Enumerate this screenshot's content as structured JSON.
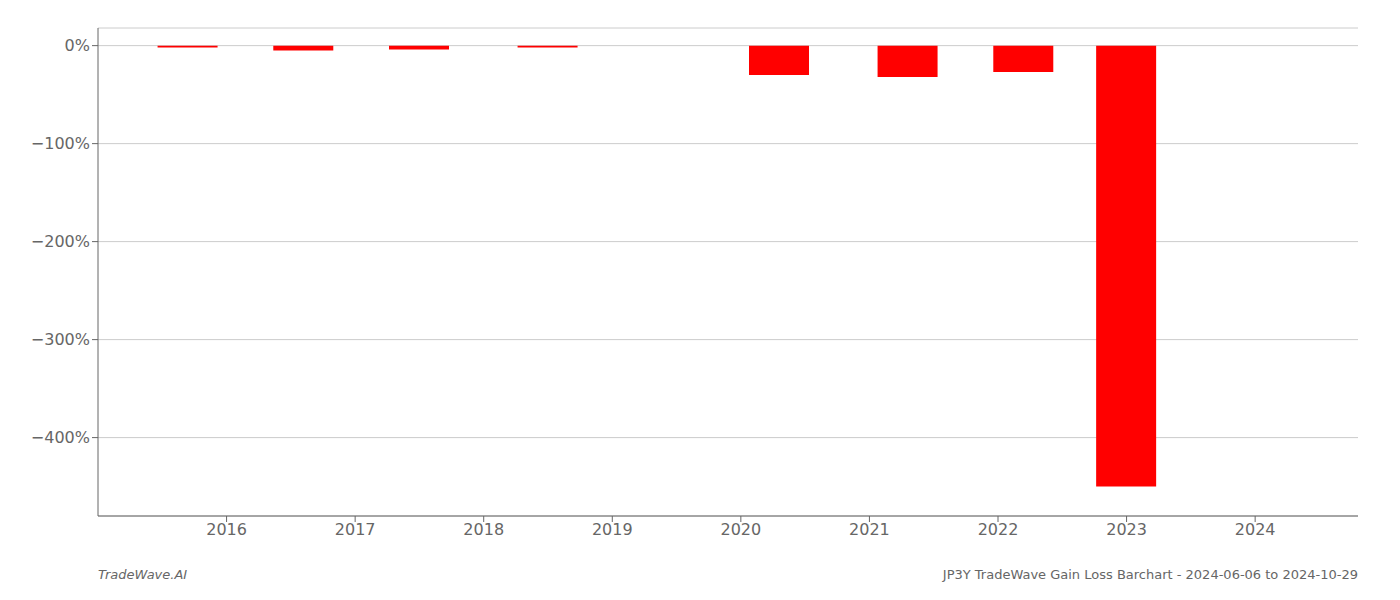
{
  "chart_data": {
    "type": "bar",
    "x": [
      2015.7,
      2016.6,
      2017.5,
      2018.5,
      2020.3,
      2021.3,
      2022.2,
      2023.0
    ],
    "values": [
      -2,
      -5,
      -4,
      -2,
      -30,
      -32,
      -27,
      -450
    ],
    "color": "#ff0000",
    "xlim": [
      2015.0,
      2024.8
    ],
    "xticks": [
      2016,
      2017,
      2018,
      2019,
      2020,
      2021,
      2022,
      2023,
      2024
    ],
    "ylim": [
      -480,
      18
    ],
    "yticks": [
      {
        "value": 0,
        "label": "0%"
      },
      {
        "value": -100,
        "label": "−100%"
      },
      {
        "value": -200,
        "label": "−200%"
      },
      {
        "value": -300,
        "label": "−300%"
      },
      {
        "value": -400,
        "label": "−400%"
      }
    ],
    "grid": true,
    "annotations": [
      "TradeWave.AI",
      "JP3Y TradeWave Gain Loss Barchart - 2024-06-06 to 2024-10-29"
    ]
  }
}
